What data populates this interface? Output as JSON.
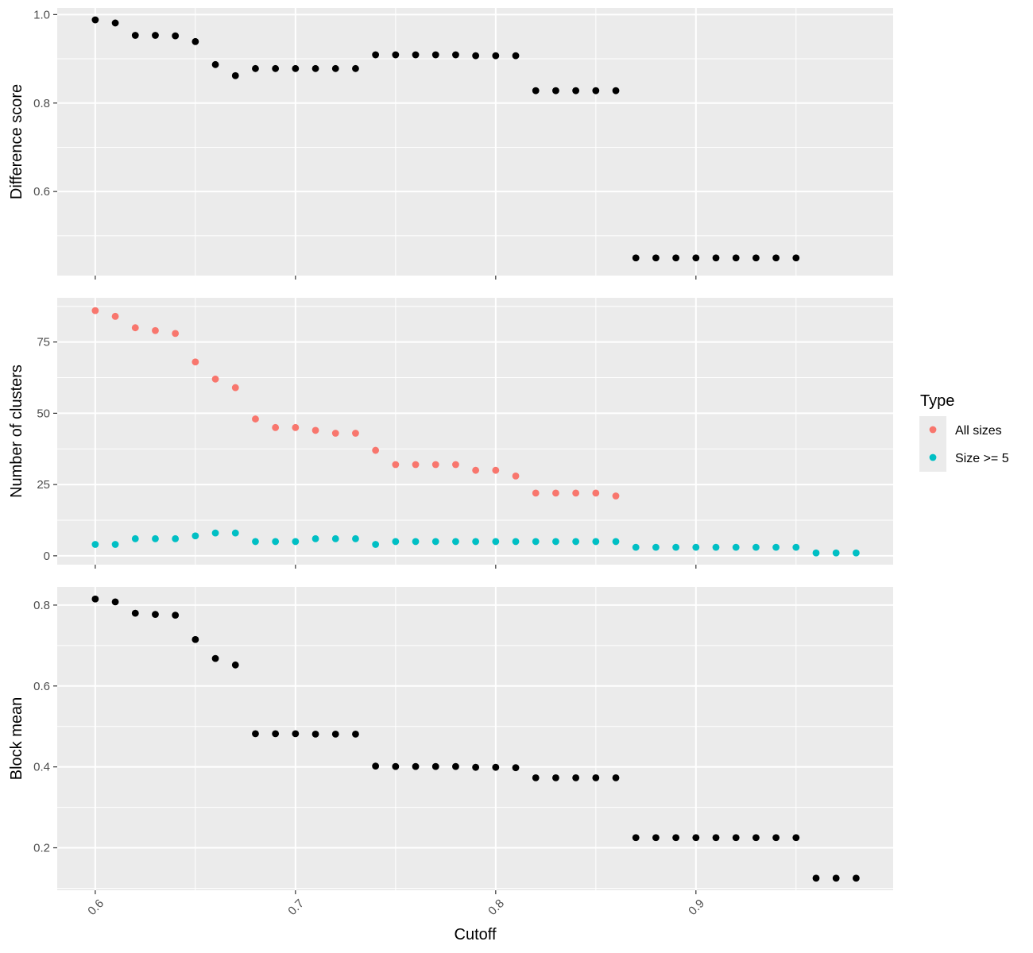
{
  "chart_data": {
    "type": "scatter",
    "x_axis": {
      "title": "Cutoff",
      "range": [
        0.581,
        0.9985
      ],
      "ticks": [
        0.6,
        0.7,
        0.8,
        0.9
      ],
      "tick_labels": [
        "0.6",
        "0.7",
        "0.8",
        "0.9"
      ],
      "tick_label_rotation": "45 degrees"
    },
    "x": [
      0.6,
      0.61,
      0.62,
      0.63,
      0.64,
      0.65,
      0.66,
      0.67,
      0.68,
      0.69,
      0.7,
      0.71,
      0.72,
      0.73,
      0.74,
      0.75,
      0.76,
      0.77,
      0.78,
      0.79,
      0.8,
      0.81,
      0.82,
      0.83,
      0.84,
      0.85,
      0.86,
      0.87,
      0.88,
      0.89,
      0.9,
      0.91,
      0.92,
      0.93,
      0.94,
      0.95,
      0.96,
      0.97,
      0.98
    ],
    "grid": true,
    "panels": [
      {
        "id": "difference",
        "ylabel": "Difference score",
        "ylim": [
          0.41,
          1.015
        ],
        "yticks": [
          0.6,
          0.8,
          1.0
        ],
        "ytick_labels": [
          "0.6",
          "0.8",
          "1.0"
        ],
        "series": [
          {
            "color": "#000000",
            "values": [
              0.988,
              0.981,
              0.953,
              0.953,
              0.952,
              0.939,
              0.887,
              0.862,
              0.878,
              0.878,
              0.878,
              0.878,
              0.878,
              0.878,
              0.909,
              0.909,
              0.909,
              0.909,
              0.909,
              0.907,
              0.907,
              0.907,
              0.828,
              0.828,
              0.828,
              0.828,
              0.828,
              0.45,
              0.45,
              0.45,
              0.45,
              0.45,
              0.45,
              0.45,
              0.45,
              0.45,
              null,
              null,
              null
            ]
          }
        ]
      },
      {
        "id": "clusters",
        "ylabel": "Number of clusters",
        "ylim": [
          -3.1,
          90.5
        ],
        "yticks": [
          0,
          25,
          50,
          75
        ],
        "ytick_labels": [
          "0",
          "25",
          "50",
          "75"
        ],
        "series": [
          {
            "name": "All sizes",
            "color": "#F8766D",
            "values": [
              86,
              84,
              80,
              79,
              78,
              68,
              62,
              59,
              48,
              45,
              45,
              44,
              43,
              43,
              37,
              32,
              32,
              32,
              32,
              30,
              30,
              28,
              22,
              22,
              22,
              22,
              21,
              null,
              null,
              null,
              null,
              null,
              null,
              null,
              null,
              null,
              null,
              null,
              null
            ]
          },
          {
            "name": "Size >= 5",
            "color": "#00BFC4",
            "values": [
              4,
              4,
              6,
              6,
              6,
              7,
              8,
              8,
              5,
              5,
              5,
              6,
              6,
              6,
              4,
              5,
              5,
              5,
              5,
              5,
              5,
              5,
              5,
              5,
              5,
              5,
              5,
              3,
              3,
              3,
              3,
              3,
              3,
              3,
              3,
              3,
              1,
              1,
              1
            ]
          }
        ]
      },
      {
        "id": "block",
        "ylabel": "Block mean",
        "ylim": [
          0.095,
          0.845
        ],
        "yticks": [
          0.2,
          0.4,
          0.6,
          0.8
        ],
        "ytick_labels": [
          "0.2",
          "0.4",
          "0.6",
          "0.8"
        ],
        "series": [
          {
            "color": "#000000",
            "values": [
              0.815,
              0.808,
              0.78,
              0.777,
              0.775,
              0.715,
              0.668,
              0.652,
              0.482,
              0.482,
              0.482,
              0.481,
              0.481,
              0.481,
              0.402,
              0.401,
              0.401,
              0.401,
              0.401,
              0.399,
              0.399,
              0.398,
              0.373,
              0.373,
              0.373,
              0.373,
              0.373,
              0.225,
              0.225,
              0.225,
              0.225,
              0.225,
              0.225,
              0.225,
              0.225,
              0.225,
              0.125,
              0.125,
              0.125
            ]
          }
        ]
      }
    ],
    "legend": {
      "title": "Type",
      "placement": "right",
      "entries": [
        {
          "label": "All sizes",
          "color": "#F8766D"
        },
        {
          "label": "Size >= 5",
          "color": "#00BFC4"
        }
      ]
    }
  }
}
